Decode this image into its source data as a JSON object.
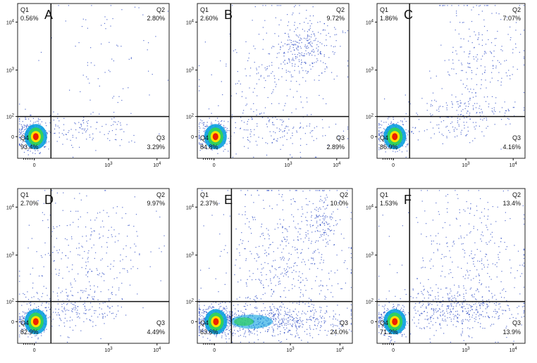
{
  "chart_data": [
    {
      "type": "scatter",
      "panel_label": "A",
      "quadrants": {
        "Q1": {
          "name": "Q1",
          "percent": "0.56%"
        },
        "Q2": {
          "name": "Q2",
          "percent": "2.80%"
        },
        "Q3": {
          "name": "Q3",
          "percent": "3.29%"
        },
        "Q4": {
          "name": "Q4",
          "percent": "93.4%"
        }
      },
      "x_ticks": [
        {
          "base": "0",
          "exp": ""
        },
        {
          "base": "10",
          "exp": "3"
        },
        {
          "base": "10",
          "exp": "4"
        }
      ],
      "y_ticks": [
        {
          "base": "0",
          "exp": ""
        },
        {
          "base": "10",
          "exp": "2"
        },
        {
          "base": "10",
          "exp": "3"
        },
        {
          "base": "10",
          "exp": "4"
        }
      ],
      "gate": {
        "x": 0.22,
        "y": 0.73
      }
    },
    {
      "type": "scatter",
      "panel_label": "B",
      "quadrants": {
        "Q1": {
          "name": "Q1",
          "percent": "2.60%"
        },
        "Q2": {
          "name": "Q2",
          "percent": "9.72%"
        },
        "Q3": {
          "name": "Q3",
          "percent": "2.89%"
        },
        "Q4": {
          "name": "Q4",
          "percent": "84.8%"
        }
      },
      "x_ticks": [
        {
          "base": "0",
          "exp": ""
        },
        {
          "base": "10",
          "exp": "3"
        },
        {
          "base": "10",
          "exp": "4"
        }
      ],
      "y_ticks": [
        {
          "base": "0",
          "exp": ""
        },
        {
          "base": "10",
          "exp": "2"
        },
        {
          "base": "10",
          "exp": "3"
        },
        {
          "base": "10",
          "exp": "4"
        }
      ],
      "gate": {
        "x": 0.22,
        "y": 0.73
      }
    },
    {
      "type": "scatter",
      "panel_label": "C",
      "quadrants": {
        "Q1": {
          "name": "Q1",
          "percent": "1.86%"
        },
        "Q2": {
          "name": "Q2",
          "percent": "7.07%"
        },
        "Q3": {
          "name": "Q3",
          "percent": "4.16%"
        },
        "Q4": {
          "name": "Q4",
          "percent": "86.9%"
        }
      },
      "x_ticks": [
        {
          "base": "0",
          "exp": ""
        },
        {
          "base": "10",
          "exp": "3"
        },
        {
          "base": "10",
          "exp": "4"
        }
      ],
      "y_ticks": [
        {
          "base": "0",
          "exp": ""
        },
        {
          "base": "10",
          "exp": "2"
        },
        {
          "base": "10",
          "exp": "3"
        },
        {
          "base": "10",
          "exp": "4"
        }
      ],
      "gate": {
        "x": 0.22,
        "y": 0.73
      }
    },
    {
      "type": "scatter",
      "panel_label": "D",
      "quadrants": {
        "Q1": {
          "name": "Q1",
          "percent": "2.70%"
        },
        "Q2": {
          "name": "Q2",
          "percent": "9.97%"
        },
        "Q3": {
          "name": "Q3",
          "percent": "4.49%"
        },
        "Q4": {
          "name": "Q4",
          "percent": "82.9%"
        }
      },
      "x_ticks": [
        {
          "base": "0",
          "exp": ""
        },
        {
          "base": "10",
          "exp": "3"
        },
        {
          "base": "10",
          "exp": "4"
        }
      ],
      "y_ticks": [
        {
          "base": "0",
          "exp": ""
        },
        {
          "base": "10",
          "exp": "2"
        },
        {
          "base": "10",
          "exp": "3"
        },
        {
          "base": "10",
          "exp": "4"
        }
      ],
      "gate": {
        "x": 0.22,
        "y": 0.73
      }
    },
    {
      "type": "scatter",
      "panel_label": "E",
      "quadrants": {
        "Q1": {
          "name": "Q1",
          "percent": "2.37%"
        },
        "Q2": {
          "name": "Q2",
          "percent": "10.0%"
        },
        "Q3": {
          "name": "Q3",
          "percent": "24.0%"
        },
        "Q4": {
          "name": "Q4",
          "percent": "63.6%"
        }
      },
      "x_ticks": [
        {
          "base": "0",
          "exp": ""
        },
        {
          "base": "10",
          "exp": "3"
        },
        {
          "base": "10",
          "exp": "4"
        }
      ],
      "y_ticks": [
        {
          "base": "0",
          "exp": ""
        },
        {
          "base": "10",
          "exp": "2"
        },
        {
          "base": "10",
          "exp": "3"
        },
        {
          "base": "10",
          "exp": "4"
        }
      ],
      "gate": {
        "x": 0.22,
        "y": 0.73
      }
    },
    {
      "type": "scatter",
      "panel_label": "F",
      "quadrants": {
        "Q1": {
          "name": "Q1",
          "percent": "1.53%"
        },
        "Q2": {
          "name": "Q2",
          "percent": "13.4%"
        },
        "Q3": {
          "name": "Q3",
          "percent": "13.9%"
        },
        "Q4": {
          "name": "Q4",
          "percent": "71.2%"
        }
      },
      "x_ticks": [
        {
          "base": "0",
          "exp": ""
        },
        {
          "base": "10",
          "exp": "3"
        },
        {
          "base": "10",
          "exp": "4"
        }
      ],
      "y_ticks": [
        {
          "base": "0",
          "exp": ""
        },
        {
          "base": "10",
          "exp": "2"
        },
        {
          "base": "10",
          "exp": "3"
        },
        {
          "base": "10",
          "exp": "4"
        }
      ],
      "gate": {
        "x": 0.22,
        "y": 0.73
      }
    }
  ],
  "colors": {
    "dots": "#1f3fbf",
    "density_low": "#0aa0e0",
    "density_mid": "#30d060",
    "density_high": "#ffe000",
    "density_peak": "#ee2000",
    "frame": "#222222"
  }
}
